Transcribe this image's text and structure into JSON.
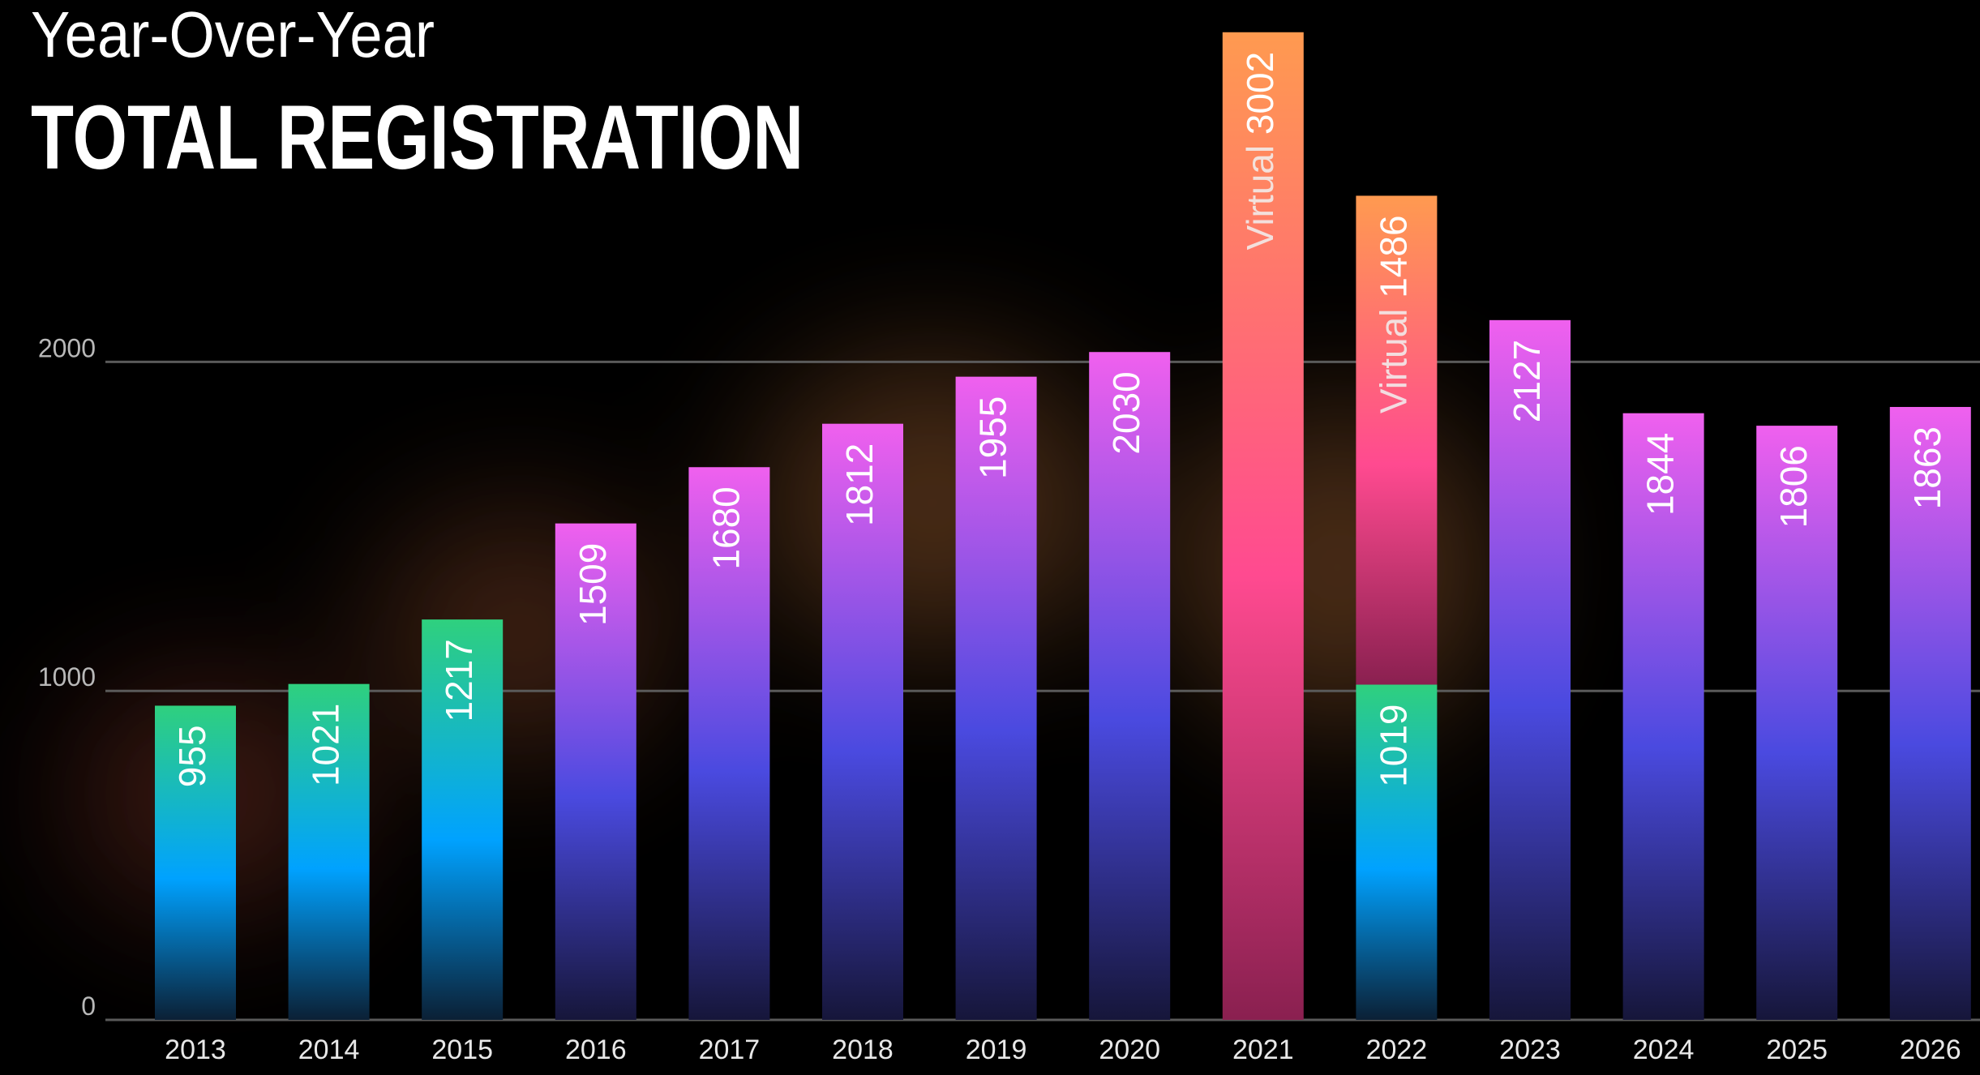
{
  "chart_data": {
    "type": "bar",
    "stacked": true,
    "subtitle": "Year-Over-Year",
    "title": "TOTAL REGISTRATION",
    "categories": [
      "2013",
      "2014",
      "2015",
      "2016",
      "2017",
      "2018",
      "2019",
      "2020",
      "2021",
      "2022",
      "2023",
      "2024",
      "2025",
      "2026"
    ],
    "series": [
      {
        "color": [
          [
            "#2fd07e",
            "#00a2ff",
            "#0b2035"
          ],
          [
            "#2fd07e",
            "#00a2ff",
            "#0b2035"
          ],
          [
            "#2fd07e",
            "#00a2ff",
            "#0b2035"
          ],
          [
            "#f060ee",
            "#4a4ae0",
            "#16163a"
          ],
          [
            "#f060ee",
            "#4a4ae0",
            "#16163a"
          ],
          [
            "#f060ee",
            "#4a4ae0",
            "#16163a"
          ],
          [
            "#f060ee",
            "#4a4ae0",
            "#16163a"
          ],
          [
            "#f060ee",
            "#4a4ae0",
            "#16163a"
          ],
          null,
          [
            "#2fd07e",
            "#00a2ff",
            "#0b2035"
          ],
          [
            "#f060ee",
            "#4a4ae0",
            "#16163a"
          ],
          [
            "#f060ee",
            "#4a4ae0",
            "#16163a"
          ],
          [
            "#f060ee",
            "#4a4ae0",
            "#16163a"
          ],
          [
            "#f060ee",
            "#4a4ae0",
            "#16163a"
          ]
        ],
        "values": [
          955,
          1021,
          1217,
          1509,
          1680,
          1812,
          1955,
          2030,
          null,
          1019,
          2127,
          1844,
          1806,
          1863
        ]
      },
      {
        "name": "Virtual",
        "color": [
          null,
          null,
          null,
          null,
          null,
          null,
          null,
          null,
          [
            "#ff9a50",
            "#ff4a90",
            "#8a2050"
          ],
          [
            "#ff9a50",
            "#ff4a90",
            "#8a2050"
          ],
          null,
          null,
          null,
          null
        ],
        "values": [
          null,
          null,
          null,
          null,
          null,
          null,
          null,
          null,
          3002,
          1486,
          null,
          null,
          null,
          null
        ]
      }
    ],
    "ylim": [
      0,
      3100
    ],
    "yticks": [
      0,
      1000,
      2000
    ],
    "grid": true
  }
}
